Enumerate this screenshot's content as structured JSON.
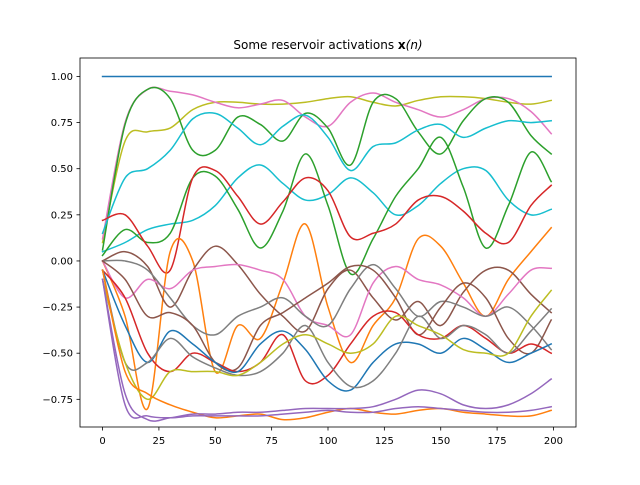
{
  "chart_data": {
    "type": "line",
    "title_plain": "Some reservoir activations ",
    "title_bold": "x",
    "title_italic": "(n)",
    "xlabel": "",
    "ylabel": "",
    "xlim": [
      -10,
      210
    ],
    "ylim": [
      -0.9,
      1.1
    ],
    "xticks": [
      0,
      25,
      50,
      75,
      100,
      125,
      150,
      175,
      200
    ],
    "xtick_labels": [
      "0",
      "25",
      "50",
      "75",
      "100",
      "125",
      "150",
      "175",
      "200"
    ],
    "yticks": [
      1.0,
      0.75,
      0.5,
      0.25,
      0.0,
      -0.25,
      -0.5,
      -0.75
    ],
    "ytick_labels": [
      "1.00",
      "0.75",
      "0.50",
      "0.25",
      "0.00",
      "−0.25",
      "−0.50",
      "−0.75"
    ],
    "grid": false,
    "x": [
      0,
      10,
      20,
      30,
      40,
      50,
      60,
      70,
      80,
      90,
      100,
      110,
      120,
      130,
      140,
      150,
      160,
      170,
      180,
      190,
      199
    ],
    "series": [
      {
        "color": "#1f77b4",
        "values": [
          1.0,
          1.0,
          1.0,
          1.0,
          1.0,
          1.0,
          1.0,
          1.0,
          1.0,
          1.0,
          1.0,
          1.0,
          1.0,
          1.0,
          1.0,
          1.0,
          1.0,
          1.0,
          1.0,
          1.0,
          1.0
        ]
      },
      {
        "color": "#bcbd22",
        "values": [
          0.1,
          0.65,
          0.7,
          0.72,
          0.82,
          0.86,
          0.86,
          0.85,
          0.85,
          0.86,
          0.88,
          0.89,
          0.86,
          0.84,
          0.87,
          0.89,
          0.89,
          0.88,
          0.86,
          0.85,
          0.87
        ]
      },
      {
        "color": "#e377c2",
        "values": [
          0.12,
          0.75,
          0.93,
          0.92,
          0.9,
          0.86,
          0.83,
          0.85,
          0.87,
          0.78,
          0.73,
          0.86,
          0.91,
          0.86,
          0.82,
          0.78,
          0.82,
          0.88,
          0.88,
          0.81,
          0.69
        ]
      },
      {
        "color": "#2ca02c",
        "values": [
          0.06,
          0.74,
          0.93,
          0.88,
          0.6,
          0.6,
          0.78,
          0.74,
          0.65,
          0.8,
          0.72,
          0.52,
          0.86,
          0.88,
          0.7,
          0.58,
          0.76,
          0.88,
          0.86,
          0.68,
          0.58
        ]
      },
      {
        "color": "#17becf",
        "values": [
          0.15,
          0.45,
          0.5,
          0.6,
          0.77,
          0.8,
          0.72,
          0.63,
          0.73,
          0.79,
          0.67,
          0.49,
          0.62,
          0.64,
          0.71,
          0.74,
          0.67,
          0.72,
          0.76,
          0.75,
          0.76
        ]
      },
      {
        "color": "#17becf",
        "values": [
          0.05,
          0.1,
          0.17,
          0.2,
          0.22,
          0.3,
          0.45,
          0.52,
          0.42,
          0.33,
          0.36,
          0.45,
          0.37,
          0.25,
          0.3,
          0.42,
          0.5,
          0.49,
          0.33,
          0.25,
          0.28
        ]
      },
      {
        "color": "#2ca02c",
        "values": [
          0.03,
          0.17,
          0.1,
          0.15,
          0.45,
          0.46,
          0.28,
          0.07,
          0.27,
          0.58,
          0.3,
          -0.07,
          0.12,
          0.35,
          0.5,
          0.67,
          0.4,
          0.07,
          0.3,
          0.59,
          0.43
        ]
      },
      {
        "color": "#d62728",
        "values": [
          0.22,
          0.25,
          0.08,
          -0.05,
          0.45,
          0.49,
          0.35,
          0.2,
          0.32,
          0.45,
          0.38,
          0.13,
          0.15,
          0.2,
          0.33,
          0.35,
          0.27,
          0.15,
          0.1,
          0.3,
          0.41
        ]
      },
      {
        "color": "#ff7f0e",
        "values": [
          0.0,
          -0.3,
          -0.8,
          0.05,
          0.0,
          -0.6,
          -0.35,
          -0.42,
          -0.12,
          0.2,
          -0.25,
          -0.55,
          -0.35,
          -0.2,
          0.12,
          0.08,
          -0.12,
          -0.3,
          -0.1,
          0.05,
          0.18
        ]
      },
      {
        "color": "#8c564b",
        "values": [
          0.0,
          0.05,
          -0.03,
          -0.25,
          -0.05,
          0.08,
          -0.02,
          -0.18,
          -0.3,
          -0.38,
          -0.15,
          -0.05,
          -0.2,
          -0.32,
          -0.22,
          -0.35,
          -0.17,
          -0.05,
          -0.05,
          -0.18,
          -0.28
        ]
      },
      {
        "color": "#e377c2",
        "values": [
          0.0,
          -0.2,
          -0.1,
          -0.15,
          -0.05,
          -0.03,
          -0.02,
          -0.05,
          -0.1,
          -0.3,
          -0.35,
          -0.4,
          -0.12,
          -0.03,
          -0.1,
          -0.13,
          -0.2,
          -0.3,
          -0.18,
          -0.05,
          -0.04
        ]
      },
      {
        "color": "#7f7f7f",
        "values": [
          0.0,
          0.0,
          -0.05,
          -0.2,
          -0.35,
          -0.4,
          -0.3,
          -0.25,
          -0.2,
          -0.3,
          -0.35,
          -0.15,
          -0.02,
          -0.15,
          -0.3,
          -0.22,
          -0.25,
          -0.3,
          -0.25,
          -0.35,
          -0.48
        ]
      },
      {
        "color": "#8c564b",
        "values": [
          0.0,
          -0.1,
          -0.3,
          -0.28,
          -0.35,
          -0.55,
          -0.58,
          -0.35,
          -0.28,
          -0.2,
          -0.12,
          -0.03,
          -0.05,
          -0.2,
          -0.4,
          -0.25,
          -0.12,
          -0.2,
          -0.42,
          -0.5,
          -0.32
        ]
      },
      {
        "color": "#d62728",
        "values": [
          -0.05,
          -0.2,
          -0.5,
          -0.6,
          -0.5,
          -0.55,
          -0.6,
          -0.55,
          -0.4,
          -0.65,
          -0.62,
          -0.45,
          -0.3,
          -0.28,
          -0.4,
          -0.42,
          -0.35,
          -0.42,
          -0.5,
          -0.45,
          -0.5
        ]
      },
      {
        "color": "#1f77b4",
        "values": [
          -0.05,
          -0.35,
          -0.55,
          -0.38,
          -0.45,
          -0.55,
          -0.6,
          -0.45,
          -0.38,
          -0.48,
          -0.65,
          -0.7,
          -0.55,
          -0.45,
          -0.45,
          -0.5,
          -0.42,
          -0.48,
          -0.55,
          -0.5,
          -0.45
        ]
      },
      {
        "color": "#7f7f7f",
        "values": [
          -0.05,
          -0.55,
          -0.55,
          -0.42,
          -0.52,
          -0.58,
          -0.62,
          -0.6,
          -0.5,
          -0.35,
          -0.55,
          -0.68,
          -0.65,
          -0.5,
          -0.3,
          -0.42,
          -0.35,
          -0.4,
          -0.5,
          -0.38,
          -0.26
        ]
      },
      {
        "color": "#bcbd22",
        "values": [
          -0.1,
          -0.55,
          -0.75,
          -0.6,
          -0.6,
          -0.6,
          -0.62,
          -0.55,
          -0.45,
          -0.4,
          -0.45,
          -0.5,
          -0.45,
          -0.3,
          -0.35,
          -0.4,
          -0.48,
          -0.5,
          -0.5,
          -0.3,
          -0.16
        ]
      },
      {
        "color": "#ff7f0e",
        "values": [
          -0.05,
          -0.6,
          -0.72,
          -0.78,
          -0.82,
          -0.85,
          -0.84,
          -0.83,
          -0.86,
          -0.85,
          -0.82,
          -0.8,
          -0.82,
          -0.83,
          -0.81,
          -0.8,
          -0.82,
          -0.83,
          -0.84,
          -0.84,
          -0.81
        ]
      },
      {
        "color": "#9467bd",
        "values": [
          -0.1,
          -0.72,
          -0.86,
          -0.85,
          -0.83,
          -0.83,
          -0.82,
          -0.82,
          -0.81,
          -0.8,
          -0.8,
          -0.8,
          -0.79,
          -0.75,
          -0.7,
          -0.72,
          -0.78,
          -0.8,
          -0.78,
          -0.72,
          -0.64
        ]
      },
      {
        "color": "#9467bd",
        "values": [
          -0.1,
          -0.78,
          -0.84,
          -0.85,
          -0.84,
          -0.84,
          -0.84,
          -0.84,
          -0.83,
          -0.82,
          -0.81,
          -0.82,
          -0.82,
          -0.8,
          -0.79,
          -0.8,
          -0.81,
          -0.82,
          -0.82,
          -0.81,
          -0.79
        ]
      }
    ]
  }
}
